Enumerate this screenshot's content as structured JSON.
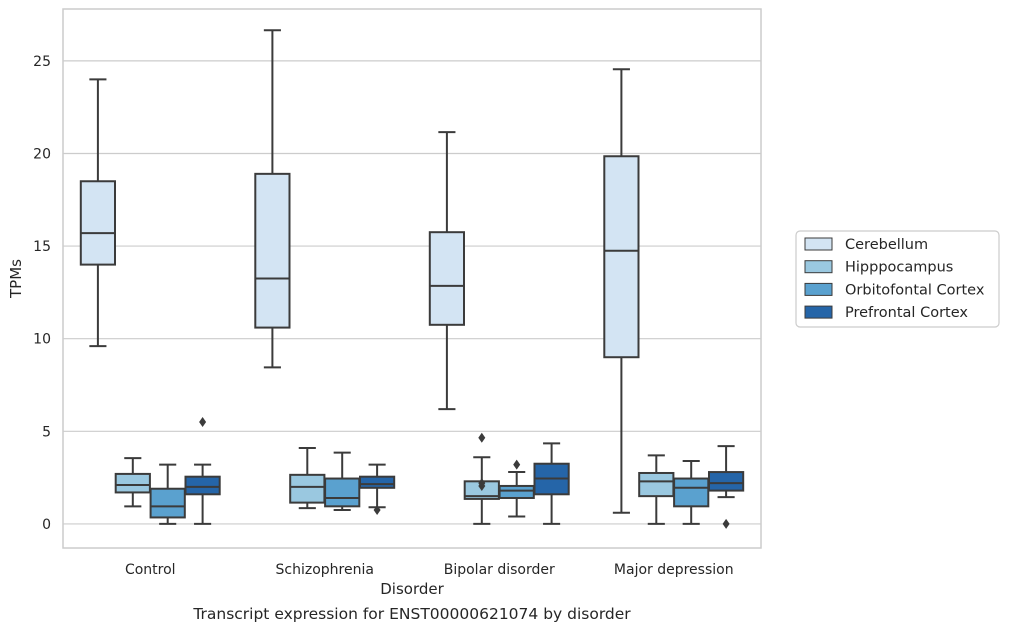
{
  "caption": "Transcript expression for ENST00000621074 by disorder",
  "chart_data": {
    "type": "boxplot",
    "xlabel": "Disorder",
    "ylabel": "TPMs",
    "ylim": [
      -1.3,
      27.8
    ],
    "yticks": [
      0,
      5,
      10,
      15,
      20,
      25
    ],
    "grid": "horizontal",
    "legend_position": "right",
    "categories": [
      "Control",
      "Schizophrenia",
      "Bipolar disorder",
      "Major depression"
    ],
    "series": [
      {
        "name": "Cerebellum",
        "color": "#d3e4f3",
        "boxes": [
          {
            "whislo": 9.6,
            "q1": 14.0,
            "med": 15.7,
            "q3": 18.5,
            "whishi": 24.0,
            "fliers": []
          },
          {
            "whislo": 8.45,
            "q1": 10.6,
            "med": 13.25,
            "q3": 18.9,
            "whishi": 26.65,
            "fliers": []
          },
          {
            "whislo": 6.2,
            "q1": 10.75,
            "med": 12.85,
            "q3": 15.75,
            "whishi": 21.15,
            "fliers": []
          },
          {
            "whislo": 0.6,
            "q1": 9.0,
            "med": 14.75,
            "q3": 19.85,
            "whishi": 24.55,
            "fliers": []
          }
        ]
      },
      {
        "name": "Hipppocampus",
        "color": "#9ac8e0",
        "boxes": [
          {
            "whislo": 0.95,
            "q1": 1.7,
            "med": 2.1,
            "q3": 2.7,
            "whishi": 3.55,
            "fliers": []
          },
          {
            "whislo": 0.85,
            "q1": 1.15,
            "med": 2.0,
            "q3": 2.65,
            "whishi": 4.1,
            "fliers": []
          },
          {
            "whislo": 0.0,
            "q1": 1.35,
            "med": 1.5,
            "q3": 2.3,
            "whishi": 3.6,
            "fliers": [
              2.05,
              2.2,
              4.65
            ]
          },
          {
            "whislo": 0.0,
            "q1": 1.5,
            "med": 2.3,
            "q3": 2.75,
            "whishi": 3.7,
            "fliers": []
          }
        ]
      },
      {
        "name": "Orbitofontal Cortex",
        "color": "#5aa1cf",
        "boxes": [
          {
            "whislo": 0.0,
            "q1": 0.35,
            "med": 0.95,
            "q3": 1.9,
            "whishi": 3.2,
            "fliers": []
          },
          {
            "whislo": 0.75,
            "q1": 0.95,
            "med": 1.4,
            "q3": 2.45,
            "whishi": 3.85,
            "fliers": []
          },
          {
            "whislo": 0.4,
            "q1": 1.4,
            "med": 1.8,
            "q3": 2.05,
            "whishi": 2.8,
            "fliers": [
              3.2
            ]
          },
          {
            "whislo": 0.0,
            "q1": 0.95,
            "med": 1.95,
            "q3": 2.45,
            "whishi": 3.4,
            "fliers": []
          }
        ]
      },
      {
        "name": "Prefrontal Cortex",
        "color": "#2565a8",
        "boxes": [
          {
            "whislo": 0.0,
            "q1": 1.6,
            "med": 2.0,
            "q3": 2.55,
            "whishi": 3.2,
            "fliers": [
              5.5
            ]
          },
          {
            "whislo": 0.9,
            "q1": 1.95,
            "med": 2.15,
            "q3": 2.55,
            "whishi": 3.2,
            "fliers": [
              0.75
            ]
          },
          {
            "whislo": 0.0,
            "q1": 1.6,
            "med": 2.45,
            "q3": 3.25,
            "whishi": 4.35,
            "fliers": []
          },
          {
            "whislo": 1.45,
            "q1": 1.8,
            "med": 2.2,
            "q3": 2.8,
            "whishi": 4.2,
            "fliers": [
              0.0
            ]
          }
        ]
      }
    ]
  }
}
